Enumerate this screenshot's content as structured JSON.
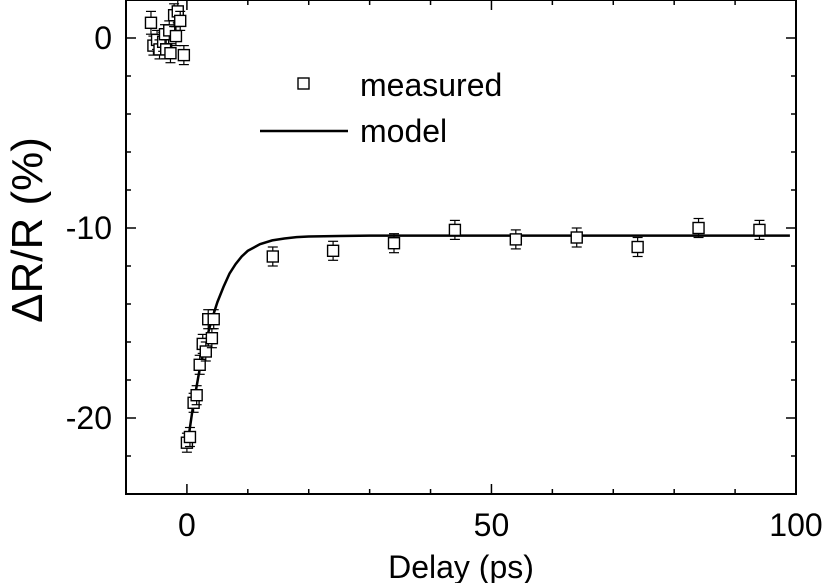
{
  "chart_data": {
    "type": "scatter",
    "xlabel": "Delay (ps)",
    "ylabel": "ΔR/R (%)",
    "xlim": [
      -10,
      100
    ],
    "ylim": [
      -24,
      2
    ],
    "x_ticks": [
      0,
      50,
      100
    ],
    "y_ticks": [
      0,
      -10,
      -20
    ],
    "x_tick_labels": [
      "0",
      "50",
      "100"
    ],
    "y_tick_labels": [
      "0",
      "-10",
      "-20"
    ],
    "grid": false,
    "legend_position": "top-center",
    "legend": {
      "measured": "measured",
      "model": "model"
    },
    "series": [
      {
        "name": "measured",
        "kind": "points-with-error-bars",
        "marker": "open-square",
        "points": [
          {
            "x": -5.9,
            "y": 0.8,
            "err": 0.6
          },
          {
            "x": -5.5,
            "y": -0.4,
            "err": 0.5
          },
          {
            "x": -4.9,
            "y": -0.1,
            "err": 0.5
          },
          {
            "x": -4.5,
            "y": -0.6,
            "err": 0.5
          },
          {
            "x": -3.9,
            "y": -0.2,
            "err": 0.5
          },
          {
            "x": -3.6,
            "y": 0.2,
            "err": 0.5
          },
          {
            "x": -3.4,
            "y": -0.6,
            "err": 0.5
          },
          {
            "x": -2.9,
            "y": 0.4,
            "err": 0.5
          },
          {
            "x": -2.7,
            "y": -0.8,
            "err": 0.5
          },
          {
            "x": -2.1,
            "y": 1.2,
            "err": 0.6
          },
          {
            "x": -1.8,
            "y": 0.1,
            "err": 0.5
          },
          {
            "x": -1.5,
            "y": 1.4,
            "err": 0.6
          },
          {
            "x": -1.1,
            "y": 0.9,
            "err": 0.5
          },
          {
            "x": -0.5,
            "y": -0.9,
            "err": 0.5
          },
          {
            "x": 0.0,
            "y": -21.3,
            "err": 0.5
          },
          {
            "x": 0.5,
            "y": -21.0,
            "err": 0.5
          },
          {
            "x": 1.1,
            "y": -19.2,
            "err": 0.5
          },
          {
            "x": 1.6,
            "y": -18.8,
            "err": 0.5
          },
          {
            "x": 2.1,
            "y": -17.2,
            "err": 0.5
          },
          {
            "x": 2.6,
            "y": -16.1,
            "err": 0.5
          },
          {
            "x": 3.1,
            "y": -16.5,
            "err": 0.5
          },
          {
            "x": 3.5,
            "y": -14.8,
            "err": 0.5
          },
          {
            "x": 4.1,
            "y": -15.8,
            "err": 0.5
          },
          {
            "x": 4.4,
            "y": -14.8,
            "err": 0.5
          },
          {
            "x": 14.1,
            "y": -11.5,
            "err": 0.5
          },
          {
            "x": 24.0,
            "y": -11.2,
            "err": 0.5
          },
          {
            "x": 34.0,
            "y": -10.8,
            "err": 0.5
          },
          {
            "x": 44.0,
            "y": -10.1,
            "err": 0.5
          },
          {
            "x": 54.0,
            "y": -10.6,
            "err": 0.5
          },
          {
            "x": 64.0,
            "y": -10.5,
            "err": 0.5
          },
          {
            "x": 74.0,
            "y": -11.0,
            "err": 0.5
          },
          {
            "x": 84.0,
            "y": -10.0,
            "err": 0.5
          },
          {
            "x": 94.0,
            "y": -10.1,
            "err": 0.5
          }
        ]
      },
      {
        "name": "model",
        "kind": "line",
        "points": [
          {
            "x": 0.0,
            "y": -21.6
          },
          {
            "x": 1.0,
            "y": -19.4
          },
          {
            "x": 2.0,
            "y": -17.6
          },
          {
            "x": 3.0,
            "y": -16.1
          },
          {
            "x": 4.0,
            "y": -14.9
          },
          {
            "x": 5.0,
            "y": -13.9
          },
          {
            "x": 6.0,
            "y": -13.1
          },
          {
            "x": 7.0,
            "y": -12.4
          },
          {
            "x": 8.0,
            "y": -11.9
          },
          {
            "x": 9.0,
            "y": -11.5
          },
          {
            "x": 10.0,
            "y": -11.2
          },
          {
            "x": 12.0,
            "y": -10.85
          },
          {
            "x": 14.0,
            "y": -10.65
          },
          {
            "x": 16.0,
            "y": -10.55
          },
          {
            "x": 18.0,
            "y": -10.48
          },
          {
            "x": 20.0,
            "y": -10.45
          },
          {
            "x": 25.0,
            "y": -10.42
          },
          {
            "x": 30.0,
            "y": -10.4
          },
          {
            "x": 50.0,
            "y": -10.4
          },
          {
            "x": 75.0,
            "y": -10.4
          },
          {
            "x": 99.0,
            "y": -10.4
          }
        ]
      }
    ]
  }
}
